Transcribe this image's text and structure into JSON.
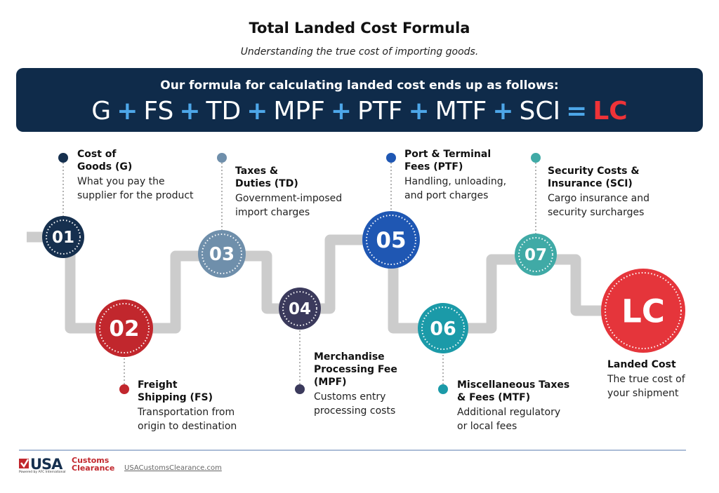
{
  "header": {
    "title": "Total Landed Cost Formula",
    "subtitle": "Understanding the true cost of importing goods."
  },
  "banner": {
    "lead": "Our formula for calculating landed cost ends up as follows:",
    "formula": [
      {
        "term": "G"
      },
      {
        "operator": "+"
      },
      {
        "term": "FS"
      },
      {
        "operator": "+"
      },
      {
        "term": "TD"
      },
      {
        "operator": "+"
      },
      {
        "term": "MPF"
      },
      {
        "operator": "+"
      },
      {
        "term": "PTF"
      },
      {
        "operator": "+"
      },
      {
        "term": "MTF"
      },
      {
        "operator": "+"
      },
      {
        "term": "SCI"
      },
      {
        "operator": "="
      },
      {
        "result": "LC"
      }
    ]
  },
  "steps": [
    {
      "number": "01",
      "title": "Cost of Goods (G)",
      "description": "What you pay the supplier for the product"
    },
    {
      "number": "02",
      "title": "Freight Shipping (FS)",
      "description": "Transportation from origin to destination"
    },
    {
      "number": "03",
      "title": "Taxes & Duties (TD)",
      "description": "Government-imposed import charges"
    },
    {
      "number": "04",
      "title": "Merchandise Processing Fee (MPF)",
      "description": "Customs entry processing costs"
    },
    {
      "number": "05",
      "title": "Port & Terminal Fees (PTF)",
      "description": "Handling, unloading, and port charges"
    },
    {
      "number": "06",
      "title": "Miscellaneous Taxes & Fees (MTF)",
      "description": "Additional regulatory or local fees"
    },
    {
      "number": "07",
      "title": "Security Costs & Insurance (SCI)",
      "description": "Cargo insurance and security surcharges"
    }
  ],
  "result": {
    "label": "LC",
    "title": "Landed Cost",
    "description": "The true cost of your shipment"
  },
  "footer": {
    "logo": {
      "mark": "USA",
      "brand": "Customs Clearance",
      "tagline": "Powered by AFC International"
    },
    "url": "USACustomsClearance.com"
  }
}
